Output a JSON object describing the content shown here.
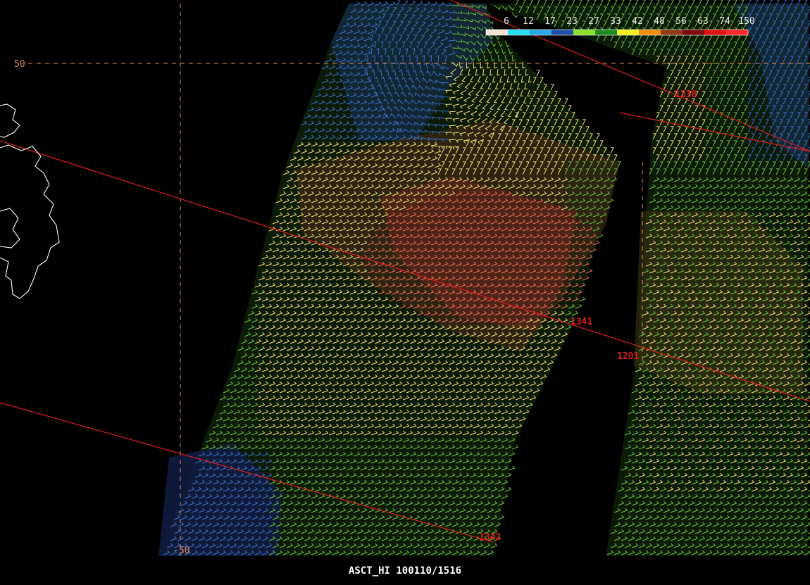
{
  "footer": "ASCT_HI  100110/1516",
  "legend": {
    "bins": [
      {
        "label": "6",
        "color": "#f4e4d8"
      },
      {
        "label": "12",
        "color": "#22e0f0"
      },
      {
        "label": "17",
        "color": "#2aa8e8"
      },
      {
        "label": "23",
        "color": "#2050a8"
      },
      {
        "label": "27",
        "color": "#8ce030"
      },
      {
        "label": "33",
        "color": "#1e8c1e"
      },
      {
        "label": "42",
        "color": "#f0f020"
      },
      {
        "label": "48",
        "color": "#f08c10"
      },
      {
        "label": "56",
        "color": "#8c3c14"
      },
      {
        "label": "63",
        "color": "#7a0a10"
      },
      {
        "label": "74",
        "color": "#e01010"
      },
      {
        "label": "150",
        "color": "#ff2a2a"
      }
    ]
  },
  "grid": {
    "lat_label": "50",
    "lon_label": "-50",
    "color": "#e08a5a"
  },
  "pass_times": [
    "1338",
    "1341",
    "1342",
    "1201"
  ],
  "colors": {
    "orbit": "#e01a1a",
    "coast": "#ffffff",
    "wind_green": "#6cc040",
    "wind_yellow": "#f0e078",
    "wind_salmon": "#f07058",
    "wind_blue": "#3a6ec8"
  }
}
